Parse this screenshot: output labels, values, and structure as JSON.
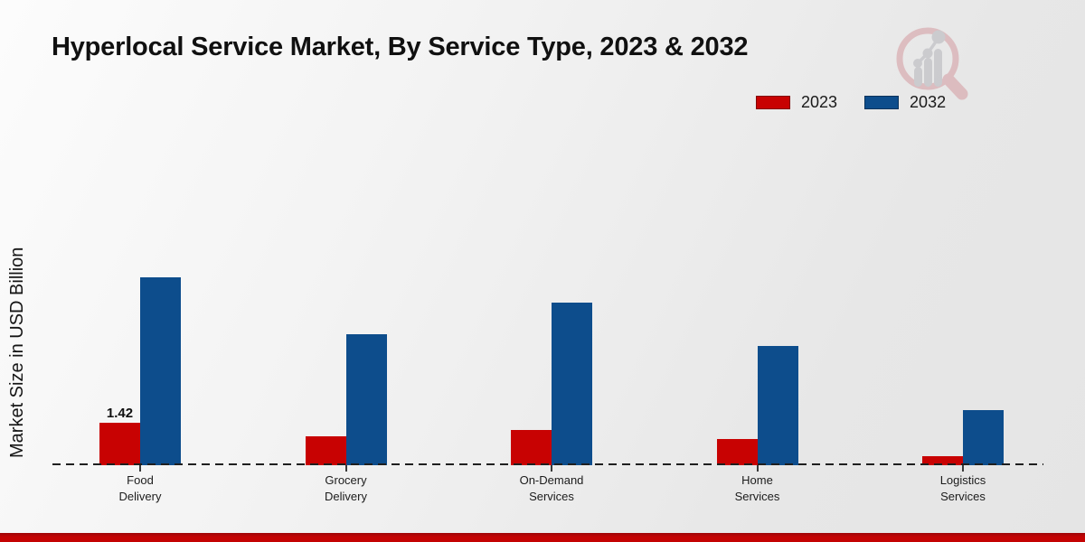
{
  "title": "Hyperlocal Service Market, By Service Type, 2023 & 2032",
  "y_axis_label": "Market Size in USD Billion",
  "legend": {
    "items": [
      {
        "label": "2023",
        "color": "#c80202"
      },
      {
        "label": "2032",
        "color": "#0d4d8c"
      }
    ]
  },
  "watermark_icon": "magnifier-bar-chart-logo",
  "accent_colors": {
    "series_2023": "#c80202",
    "series_2032": "#0d4d8c",
    "bottom_bar": "#c40303"
  },
  "chart_data": {
    "type": "bar",
    "title": "Hyperlocal Service Market, By Service Type, 2023 & 2032",
    "ylabel": "Market Size in USD Billion",
    "xlabel": "",
    "categories": [
      "Food Delivery",
      "Grocery Delivery",
      "On-Demand Services",
      "Home Services",
      "Logistics Services"
    ],
    "category_lines": [
      [
        "Food",
        "Delivery"
      ],
      [
        "Grocery",
        "Delivery"
      ],
      [
        "On-Demand",
        "Services"
      ],
      [
        "Home",
        "Services"
      ],
      [
        "Logistics",
        "Services"
      ]
    ],
    "series": [
      {
        "name": "2023",
        "color": "#c80202",
        "values": [
          1.42,
          0.98,
          1.18,
          0.88,
          0.3
        ]
      },
      {
        "name": "2032",
        "color": "#0d4d8c",
        "values": [
          6.28,
          4.39,
          5.45,
          4.0,
          1.85
        ]
      }
    ],
    "data_labels": [
      {
        "series": "2023",
        "category": "Food Delivery",
        "text": "1.42"
      }
    ],
    "ylim": [
      0,
      7
    ],
    "grid": false,
    "legend_position": "top-right",
    "axis_line_style": "dashed"
  }
}
